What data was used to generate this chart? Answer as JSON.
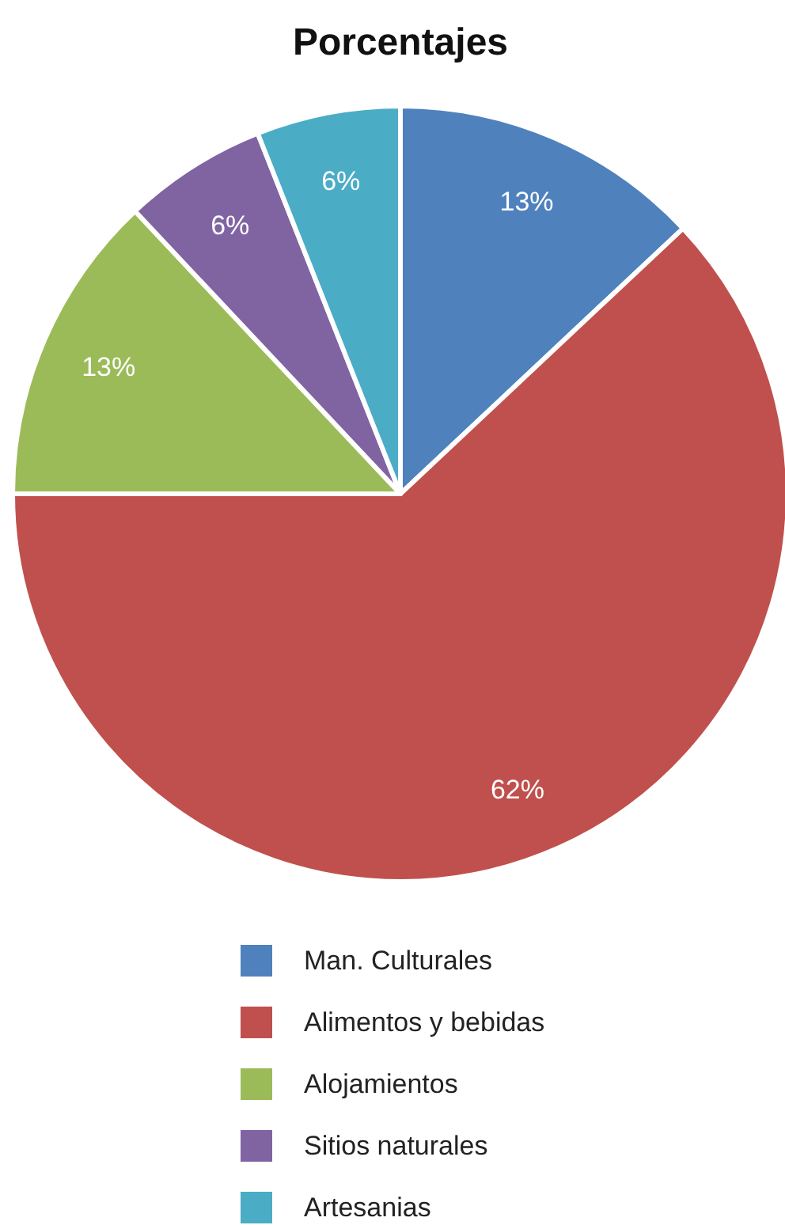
{
  "chart_data": {
    "type": "pie",
    "title": "Porcentajes",
    "categories": [
      "Man. Culturales",
      "Alimentos y bebidas",
      "Alojamientos",
      "Sitios naturales",
      "Artesanias"
    ],
    "values": [
      13,
      62,
      13,
      6,
      6
    ],
    "colors": [
      "#4f81bd",
      "#c0504d",
      "#9bbb59",
      "#8064a2",
      "#4bacc6"
    ],
    "value_labels": [
      "13%",
      "62%",
      "13%",
      "6%",
      "6%"
    ],
    "legend": "bottom"
  }
}
